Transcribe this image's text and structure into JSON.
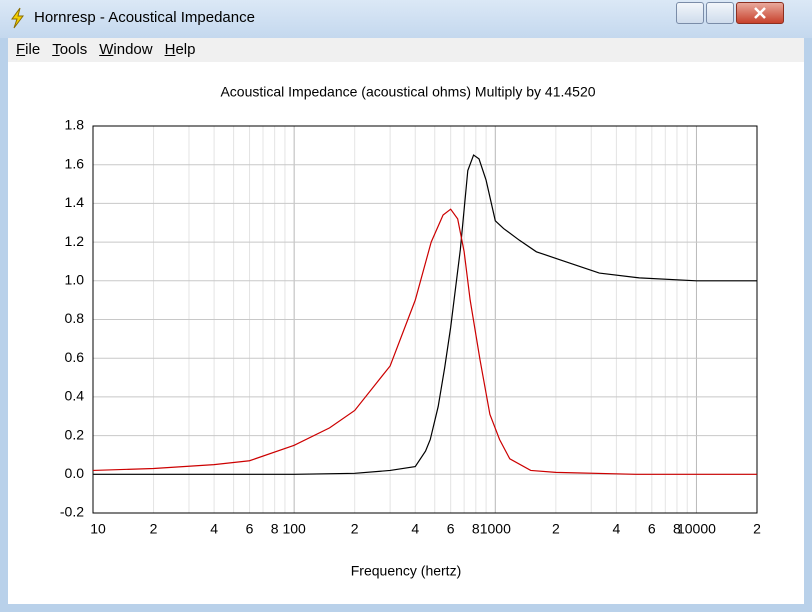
{
  "window": {
    "title": "Hornresp - Acoustical Impedance"
  },
  "menu": [
    "File",
    "Tools",
    "Window",
    "Help"
  ],
  "chart_data": {
    "type": "line",
    "title": "Acoustical Impedance (acoustical ohms)   Multiply by 41.4520",
    "x_label": "Frequency (hertz)",
    "log_x": true,
    "grid": true,
    "xlim": [
      10,
      20000
    ],
    "xticks": [
      10,
      {
        "value": 20,
        "label": "2"
      },
      {
        "value": 40,
        "label": "4"
      },
      {
        "value": 60,
        "label": "6"
      },
      {
        "value": 80,
        "label": "8"
      },
      100,
      {
        "value": 200,
        "label": "2"
      },
      {
        "value": 400,
        "label": "4"
      },
      {
        "value": 600,
        "label": "6"
      },
      {
        "value": 800,
        "label": "8"
      },
      1000,
      {
        "value": 2000,
        "label": "2"
      },
      {
        "value": 4000,
        "label": "4"
      },
      {
        "value": 6000,
        "label": "6"
      },
      {
        "value": 8000,
        "label": "8"
      },
      10000,
      {
        "value": 20000,
        "label": "2"
      }
    ],
    "x_minor_ticks": [
      30,
      50,
      70,
      90,
      300,
      500,
      700,
      900,
      3000,
      5000,
      7000,
      9000
    ],
    "ylim": [
      -0.2,
      1.8
    ],
    "yticks": [
      -0.2,
      {
        "value": 0,
        "label": "0.0"
      },
      0.2,
      0.4,
      0.6,
      0.8,
      {
        "value": 1,
        "label": "1.0"
      },
      1.2,
      1.4,
      1.6,
      1.8
    ],
    "series": [
      {
        "color": "#000000",
        "x": [
          10,
          50,
          100,
          200,
          300,
          400,
          450,
          475,
          520,
          560,
          600,
          670,
          730,
          780,
          830,
          900,
          1000,
          1100,
          1316,
          1600,
          2080,
          3290,
          5200,
          10000,
          20000
        ],
        "values": [
          0.0,
          0.0,
          0.0,
          0.005,
          0.02,
          0.04,
          0.12,
          0.18,
          0.35,
          0.55,
          0.76,
          1.16,
          1.57,
          1.65,
          1.63,
          1.52,
          1.31,
          1.27,
          1.21,
          1.15,
          1.11,
          1.04,
          1.015,
          1.0,
          1.0
        ]
      },
      {
        "color": "#cc0000",
        "x": [
          10,
          20,
          40,
          60,
          100,
          150,
          200,
          300,
          400,
          480,
          550,
          600,
          650,
          700,
          750,
          840,
          940,
          1050,
          1180,
          1500,
          2000,
          5000,
          20000
        ],
        "values": [
          0.02,
          0.03,
          0.05,
          0.07,
          0.15,
          0.24,
          0.33,
          0.56,
          0.9,
          1.2,
          1.34,
          1.37,
          1.32,
          1.15,
          0.9,
          0.59,
          0.31,
          0.18,
          0.08,
          0.02,
          0.01,
          0.0,
          0.0
        ]
      }
    ]
  }
}
